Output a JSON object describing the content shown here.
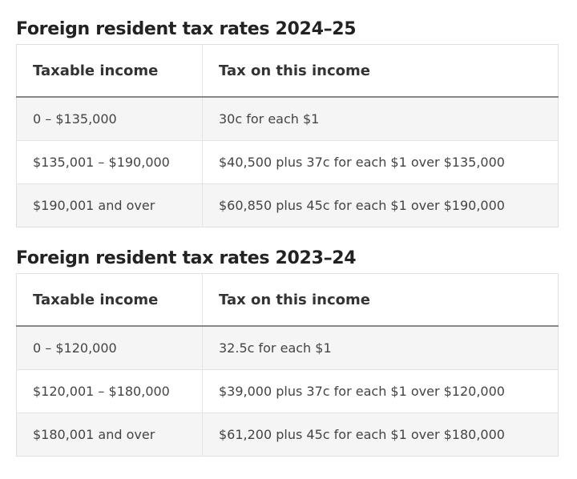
{
  "tables": [
    {
      "title": "Foreign resident tax rates 2024–25",
      "header": [
        "Taxable income",
        "Tax on this income"
      ],
      "rows": [
        [
          "0 – $135,000",
          "30c for each $1"
        ],
        [
          "$135,001 – $190,000",
          "$40,500 plus 37c for each $1 over $135,000"
        ],
        [
          "$190,001 and over",
          "$60,850 plus 45c for each $1 over $190,000"
        ]
      ]
    },
    {
      "title": "Foreign resident tax rates 2023–24",
      "header": [
        "Taxable income",
        "Tax on this income"
      ],
      "rows": [
        [
          "0 – $120,000",
          "32.5c for each $1"
        ],
        [
          "$120,001 – $180,000",
          "$39,000 plus 37c for each $1 over $120,000"
        ],
        [
          "$180,001 and over",
          "$61,200 plus 45c for each $1 over $180,000"
        ]
      ]
    }
  ]
}
